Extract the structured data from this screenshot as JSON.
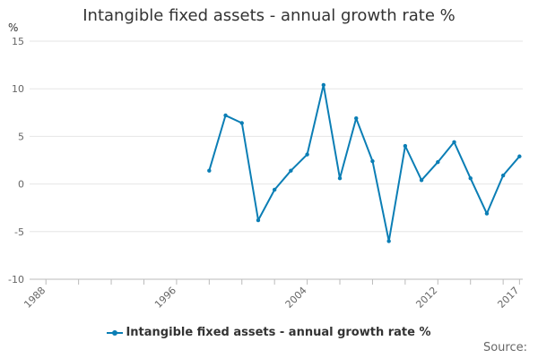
{
  "chart_data": {
    "type": "line",
    "title": "Intangible fixed assets - annual growth rate %",
    "ylabel": "%",
    "xlabel": "",
    "xlim": [
      1987,
      2017.2
    ],
    "ylim": [
      -10,
      15
    ],
    "y_ticks": [
      "15",
      "10",
      "5",
      "0",
      "-5",
      "-10"
    ],
    "y_tick_values": [
      15,
      10,
      5,
      0,
      -5,
      -10
    ],
    "x_ticks": [
      "1988",
      "1996",
      "2004",
      "2012",
      "2017"
    ],
    "x_tick_values": [
      1988,
      1996,
      2004,
      2012,
      2017
    ],
    "grid": true,
    "legend_position": "bottom",
    "series": [
      {
        "name": "Intangible fixed assets - annual growth rate %",
        "color": "#0b7eb5",
        "x": [
          1998,
          1999,
          2000,
          2001,
          2002,
          2003,
          2004,
          2005,
          2006,
          2007,
          2008,
          2009,
          2010,
          2011,
          2012,
          2013,
          2014,
          2015,
          2016,
          2017
        ],
        "values": [
          1.4,
          7.2,
          6.4,
          -3.8,
          -0.6,
          1.4,
          3.1,
          10.4,
          0.6,
          6.9,
          2.4,
          -6.0,
          4.0,
          0.4,
          2.3,
          4.4,
          0.6,
          -3.1,
          0.9,
          2.9
        ]
      }
    ]
  },
  "legend": {
    "label": "Intangible fixed assets - annual growth rate %"
  },
  "source": {
    "label": "Source:"
  }
}
